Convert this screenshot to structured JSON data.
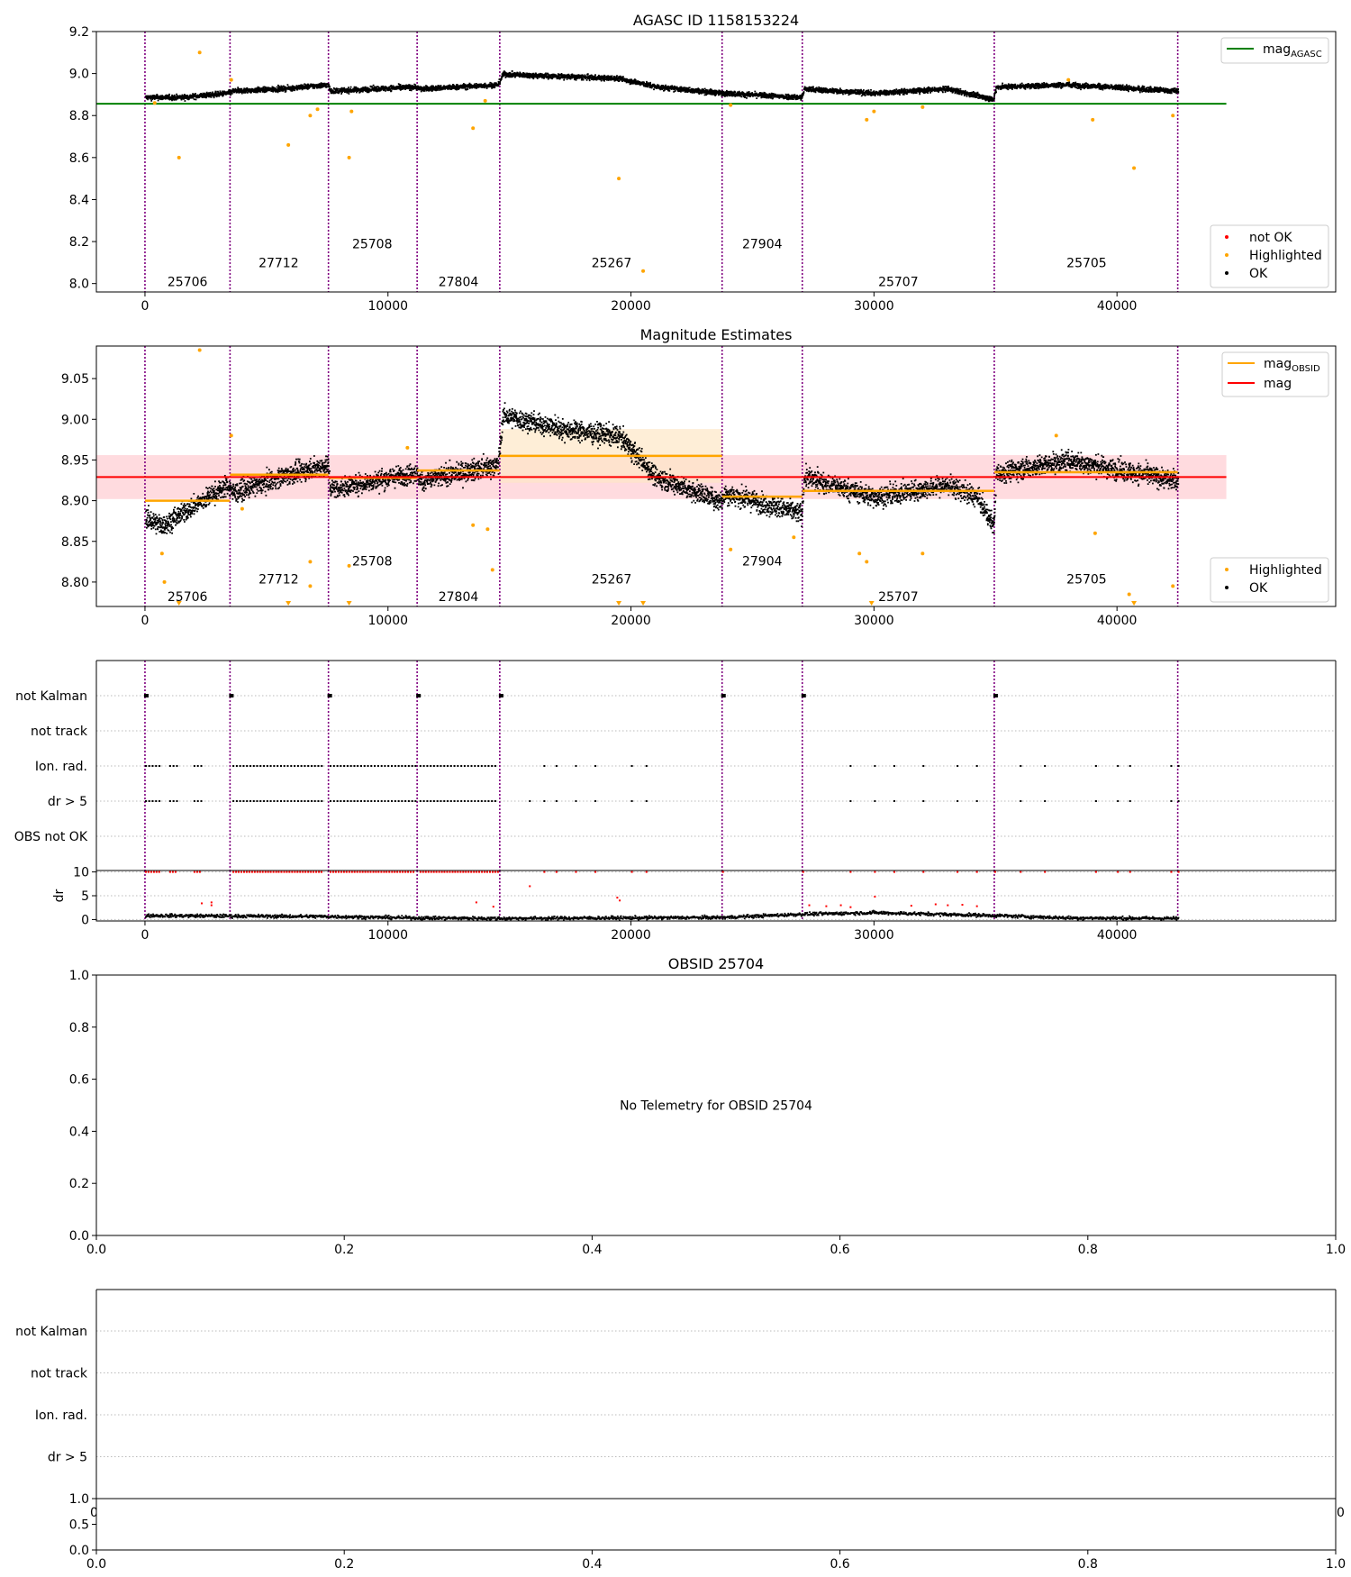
{
  "chart_data": [
    {
      "id": "agasc",
      "type": "scatter",
      "title": "AGASC ID 1158153224",
      "xlim": [
        -2000,
        49000
      ],
      "ylim": [
        7.96,
        9.2
      ],
      "yticks": [
        8.0,
        8.2,
        8.4,
        8.6,
        8.8,
        9.0,
        9.2
      ],
      "ytick_labels": [
        "8.0",
        "8.2",
        "8.4",
        "8.6",
        "8.8",
        "9.0",
        "9.2"
      ],
      "xticks": [
        0,
        10000,
        20000,
        30000,
        40000
      ],
      "xtick_labels": [
        "0",
        "10000",
        "20000",
        "30000",
        "40000"
      ],
      "obsid_boundaries": [
        0,
        3500,
        7550,
        11200,
        14600,
        23750,
        27050,
        34950,
        42500
      ],
      "obsid_labels": [
        {
          "text": "25706",
          "x": 1750,
          "y": 8.01
        },
        {
          "text": "27712",
          "x": 5500,
          "y": 8.1
        },
        {
          "text": "25708",
          "x": 9350,
          "y": 8.19
        },
        {
          "text": "27804",
          "x": 12900,
          "y": 8.01
        },
        {
          "text": "25267",
          "x": 19200,
          "y": 8.1
        },
        {
          "text": "27904",
          "x": 25400,
          "y": 8.19
        },
        {
          "text": "25707",
          "x": 31000,
          "y": 8.01
        },
        {
          "text": "25705",
          "x": 38750,
          "y": 8.1
        }
      ],
      "trend": [
        {
          "x": 0,
          "y": 8.89
        },
        {
          "x": 1500,
          "y": 8.89
        },
        {
          "x": 3400,
          "y": 8.91
        },
        {
          "x": 3600,
          "y": 8.92
        },
        {
          "x": 5500,
          "y": 8.93
        },
        {
          "x": 7500,
          "y": 8.95
        },
        {
          "x": 7600,
          "y": 8.92
        },
        {
          "x": 11100,
          "y": 8.94
        },
        {
          "x": 11300,
          "y": 8.93
        },
        {
          "x": 14500,
          "y": 8.95
        },
        {
          "x": 14700,
          "y": 9.0
        },
        {
          "x": 17000,
          "y": 8.99
        },
        {
          "x": 19500,
          "y": 8.98
        },
        {
          "x": 21000,
          "y": 8.94
        },
        {
          "x": 23700,
          "y": 8.91
        },
        {
          "x": 23800,
          "y": 8.91
        },
        {
          "x": 27000,
          "y": 8.89
        },
        {
          "x": 27100,
          "y": 8.93
        },
        {
          "x": 30000,
          "y": 8.91
        },
        {
          "x": 33000,
          "y": 8.93
        },
        {
          "x": 34900,
          "y": 8.88
        },
        {
          "x": 35000,
          "y": 8.94
        },
        {
          "x": 38000,
          "y": 8.95
        },
        {
          "x": 42500,
          "y": 8.92
        }
      ],
      "noise": 0.012,
      "highlighted_points": [
        {
          "x": 2250,
          "y": 9.1
        },
        {
          "x": 1400,
          "y": 8.6
        },
        {
          "x": 5900,
          "y": 8.66
        },
        {
          "x": 8400,
          "y": 8.6
        },
        {
          "x": 13500,
          "y": 8.74
        },
        {
          "x": 19500,
          "y": 8.5
        },
        {
          "x": 20500,
          "y": 8.06
        },
        {
          "x": 39000,
          "y": 8.78
        },
        {
          "x": 40700,
          "y": 8.55
        },
        {
          "x": 29700,
          "y": 8.78
        },
        {
          "x": 6800,
          "y": 8.8
        },
        {
          "x": 30000,
          "y": 8.82
        },
        {
          "x": 24100,
          "y": 8.85
        },
        {
          "x": 8500,
          "y": 8.82
        },
        {
          "x": 42300,
          "y": 8.8
        },
        {
          "x": 400,
          "y": 8.86
        },
        {
          "x": 7100,
          "y": 8.83
        },
        {
          "x": 14000,
          "y": 8.87
        },
        {
          "x": 38000,
          "y": 8.97
        },
        {
          "x": 3550,
          "y": 8.97
        },
        {
          "x": 32000,
          "y": 8.84
        }
      ],
      "reference_lines": [
        {
          "name": "mag_AGASC",
          "name_main": "mag",
          "name_sub": "AGASC",
          "y": 8.856,
          "color": "#008000",
          "x_range": [
            -2000,
            44500
          ]
        }
      ],
      "legend_lines": {
        "placement": "top-right",
        "items": [
          {
            "label": "mag",
            "sub": "AGASC",
            "color": "#008000"
          }
        ]
      },
      "legend_points": {
        "placement": "bottom-right",
        "items": [
          {
            "label": "not OK",
            "color": "#ff0000"
          },
          {
            "label": "Highlighted",
            "color": "#ffa500"
          },
          {
            "label": "OK",
            "color": "#000000"
          }
        ]
      },
      "grid": false
    },
    {
      "id": "magest",
      "type": "scatter",
      "title": "Magnitude Estimates",
      "xlim": [
        -2000,
        49000
      ],
      "ylim": [
        8.77,
        9.09
      ],
      "yticks": [
        8.8,
        8.85,
        8.9,
        8.95,
        9.0,
        9.05
      ],
      "ytick_labels": [
        "8.80",
        "8.85",
        "8.90",
        "8.95",
        "9.00",
        "9.05"
      ],
      "xticks": [
        0,
        10000,
        20000,
        30000,
        40000
      ],
      "xtick_labels": [
        "0",
        "10000",
        "20000",
        "30000",
        "40000"
      ],
      "obsid_boundaries": [
        0,
        3500,
        7550,
        11200,
        14600,
        23750,
        27050,
        34950,
        42500
      ],
      "obsid_labels": [
        {
          "text": "25706",
          "x": 1750,
          "y": 8.782
        },
        {
          "text": "27712",
          "x": 5500,
          "y": 8.804
        },
        {
          "text": "25708",
          "x": 9350,
          "y": 8.826
        },
        {
          "text": "27804",
          "x": 12900,
          "y": 8.782
        },
        {
          "text": "25267",
          "x": 19200,
          "y": 8.804
        },
        {
          "text": "27904",
          "x": 25400,
          "y": 8.826
        },
        {
          "text": "25707",
          "x": 31000,
          "y": 8.782
        },
        {
          "text": "25705",
          "x": 38750,
          "y": 8.804
        }
      ],
      "trend": [
        {
          "x": 0,
          "y": 8.88
        },
        {
          "x": 700,
          "y": 8.87
        },
        {
          "x": 2000,
          "y": 8.895
        },
        {
          "x": 3400,
          "y": 8.92
        },
        {
          "x": 3600,
          "y": 8.91
        },
        {
          "x": 5500,
          "y": 8.93
        },
        {
          "x": 7500,
          "y": 8.945
        },
        {
          "x": 7600,
          "y": 8.915
        },
        {
          "x": 11100,
          "y": 8.935
        },
        {
          "x": 11300,
          "y": 8.925
        },
        {
          "x": 14500,
          "y": 8.945
        },
        {
          "x": 14700,
          "y": 9.005
        },
        {
          "x": 17000,
          "y": 8.99
        },
        {
          "x": 19500,
          "y": 8.98
        },
        {
          "x": 21000,
          "y": 8.93
        },
        {
          "x": 23700,
          "y": 8.9
        },
        {
          "x": 23800,
          "y": 8.91
        },
        {
          "x": 27000,
          "y": 8.885
        },
        {
          "x": 27100,
          "y": 8.93
        },
        {
          "x": 30000,
          "y": 8.905
        },
        {
          "x": 33000,
          "y": 8.92
        },
        {
          "x": 34200,
          "y": 8.905
        },
        {
          "x": 34900,
          "y": 8.87
        },
        {
          "x": 35000,
          "y": 8.935
        },
        {
          "x": 38000,
          "y": 8.95
        },
        {
          "x": 42500,
          "y": 8.925
        }
      ],
      "noise": 0.012,
      "highlighted_points": [
        {
          "x": 2250,
          "y": 9.085
        },
        {
          "x": 3550,
          "y": 8.98
        },
        {
          "x": 700,
          "y": 8.835
        },
        {
          "x": 800,
          "y": 8.8
        },
        {
          "x": 6800,
          "y": 8.825
        },
        {
          "x": 6800,
          "y": 8.795
        },
        {
          "x": 8400,
          "y": 8.82
        },
        {
          "x": 13500,
          "y": 8.87
        },
        {
          "x": 14100,
          "y": 8.865
        },
        {
          "x": 14300,
          "y": 8.815
        },
        {
          "x": 29400,
          "y": 8.835
        },
        {
          "x": 29700,
          "y": 8.825
        },
        {
          "x": 32000,
          "y": 8.835
        },
        {
          "x": 24100,
          "y": 8.84
        },
        {
          "x": 39100,
          "y": 8.86
        },
        {
          "x": 40500,
          "y": 8.785
        },
        {
          "x": 42300,
          "y": 8.795
        },
        {
          "x": 10800,
          "y": 8.965
        },
        {
          "x": 37500,
          "y": 8.98
        },
        {
          "x": 4000,
          "y": 8.89
        },
        {
          "x": 26700,
          "y": 8.855
        }
      ],
      "low_markers": [
        {
          "x": 1400
        },
        {
          "x": 5900
        },
        {
          "x": 8400
        },
        {
          "x": 19500
        },
        {
          "x": 20500
        },
        {
          "x": 29900
        },
        {
          "x": 40700
        }
      ],
      "band": {
        "y0": 8.902,
        "y1": 8.956,
        "x_range": [
          -2000,
          44500
        ],
        "color": "#ffb0b8"
      },
      "obsid_band": {
        "x0": 14600,
        "x1": 23750,
        "y0": 8.922,
        "y1": 8.988,
        "color": "#fde7c6"
      },
      "obsid_mag": [
        {
          "x0": 0,
          "x1": 3500,
          "y": 8.9
        },
        {
          "x0": 3500,
          "x1": 7550,
          "y": 8.932
        },
        {
          "x0": 7550,
          "x1": 11200,
          "y": 8.928
        },
        {
          "x0": 11200,
          "x1": 14600,
          "y": 8.937
        },
        {
          "x0": 14600,
          "x1": 23750,
          "y": 8.955
        },
        {
          "x0": 23750,
          "x1": 27050,
          "y": 8.905
        },
        {
          "x0": 27050,
          "x1": 34950,
          "y": 8.912
        },
        {
          "x0": 34950,
          "x1": 42500,
          "y": 8.935
        }
      ],
      "reference_lines": [
        {
          "name": "mag",
          "y": 8.929,
          "color": "#ff0000",
          "x_range": [
            -2000,
            44500
          ]
        }
      ],
      "legend_lines": {
        "placement": "top-right",
        "items": [
          {
            "label": "mag",
            "sub": "OBSID",
            "color": "#ffa500"
          },
          {
            "label": "mag",
            "sub": "",
            "color": "#ff0000"
          }
        ]
      },
      "legend_points": {
        "placement": "bottom-right",
        "items": [
          {
            "label": "Highlighted",
            "color": "#ffa500"
          },
          {
            "label": "OK",
            "color": "#000000"
          }
        ]
      },
      "grid": false
    },
    {
      "id": "flags",
      "type": "scatter",
      "title": "",
      "xlim": [
        -2000,
        49000
      ],
      "categories": [
        "not Kalman",
        "not track",
        "Ion. rad.",
        "dr > 5",
        "OBS not OK"
      ],
      "xticks": [
        0,
        10000,
        20000,
        30000,
        40000
      ],
      "xtick_labels": [
        "0",
        "10000",
        "20000",
        "30000",
        "40000"
      ],
      "obsid_boundaries": [
        0,
        3500,
        7550,
        11200,
        14600,
        23750,
        27050,
        34950,
        42500
      ],
      "flag_points": {
        "not Kalman": [
          0,
          3500,
          7550,
          11200,
          14600,
          23750,
          27050,
          34950
        ],
        "Ion. rad.": {
          "dense_ranges": [
            [
              0,
              600
            ],
            [
              1000,
              1300
            ],
            [
              2000,
              2300
            ],
            [
              3600,
              7300
            ],
            [
              7600,
              11100
            ],
            [
              11300,
              14500
            ]
          ],
          "sparse": [
            16400,
            16900,
            17700,
            18500,
            20000,
            20600,
            29000,
            30000,
            30800,
            32000,
            33400,
            34200,
            36000,
            37000,
            39100,
            40000,
            40500,
            42200,
            42500
          ]
        },
        "dr > 5": {
          "dense_ranges": [
            [
              0,
              600
            ],
            [
              1000,
              1300
            ],
            [
              2000,
              2300
            ],
            [
              3600,
              7300
            ],
            [
              7600,
              11100
            ],
            [
              11300,
              14500
            ]
          ],
          "sparse": [
            15800,
            16400,
            16900,
            17700,
            18500,
            20000,
            20600,
            29000,
            30000,
            30800,
            32000,
            33400,
            34200,
            36000,
            37000,
            39100,
            40000,
            40500,
            42200,
            42500
          ]
        }
      },
      "grid": true
    },
    {
      "id": "dr",
      "type": "scatter",
      "title": "",
      "ylabel": "dr",
      "xlim": [
        -2000,
        49000
      ],
      "ylim": [
        -0.3,
        10.3
      ],
      "yticks": [
        0,
        5,
        10
      ],
      "ytick_labels": [
        "0",
        "5",
        "10"
      ],
      "xticks": [
        0,
        10000,
        20000,
        30000,
        40000
      ],
      "xtick_labels": [
        "0",
        "10000",
        "20000",
        "30000",
        "40000"
      ],
      "obsid_boundaries": [
        0,
        3500,
        7550,
        11200,
        14600,
        23750,
        27050,
        34950,
        42500
      ],
      "baseline": [
        {
          "x": 0,
          "y": 1.0
        },
        {
          "x": 3500,
          "y": 0.9
        },
        {
          "x": 7550,
          "y": 0.8
        },
        {
          "x": 11200,
          "y": 0.5
        },
        {
          "x": 14600,
          "y": 0.4
        },
        {
          "x": 23750,
          "y": 0.6
        },
        {
          "x": 27050,
          "y": 1.3
        },
        {
          "x": 30000,
          "y": 1.6
        },
        {
          "x": 34950,
          "y": 1.0
        },
        {
          "x": 38000,
          "y": 0.5
        },
        {
          "x": 42500,
          "y": 0.4
        }
      ],
      "red_capped": {
        "dense_ranges": [
          [
            0,
            600
          ],
          [
            1000,
            1300
          ],
          [
            2000,
            2300
          ],
          [
            3600,
            7300
          ],
          [
            7600,
            11100
          ],
          [
            11300,
            14500
          ]
        ],
        "sparse": [
          16400,
          16900,
          17700,
          18500,
          20000,
          20600,
          23750,
          27050,
          29000,
          30000,
          30800,
          32000,
          33400,
          34200,
          34950,
          36000,
          37000,
          39100,
          40000,
          40500,
          42200,
          42500
        ]
      },
      "red_points": [
        {
          "x": 15800,
          "y": 7
        },
        {
          "x": 13600,
          "y": 3.6
        },
        {
          "x": 19500,
          "y": 4.0
        },
        {
          "x": 2300,
          "y": 3.4
        },
        {
          "x": 2700,
          "y": 3.6
        },
        {
          "x": 2700,
          "y": 3.0
        },
        {
          "x": 19400,
          "y": 4.6
        },
        {
          "x": 30000,
          "y": 4.8
        },
        {
          "x": 27300,
          "y": 3.0
        },
        {
          "x": 28000,
          "y": 2.8
        },
        {
          "x": 28600,
          "y": 3.0
        },
        {
          "x": 29000,
          "y": 2.6
        },
        {
          "x": 31500,
          "y": 2.9
        },
        {
          "x": 32500,
          "y": 3.2
        },
        {
          "x": 33000,
          "y": 3.0
        },
        {
          "x": 33600,
          "y": 3.1
        },
        {
          "x": 34200,
          "y": 2.8
        },
        {
          "x": 14300,
          "y": 2.7
        }
      ],
      "grid": true
    },
    {
      "id": "obsid",
      "type": "scatter",
      "title": "OBSID 25704",
      "annotation": "No Telemetry for OBSID 25704",
      "xlim": [
        0,
        1
      ],
      "ylim": [
        0,
        1
      ],
      "xticks": [
        0,
        0.2,
        0.4,
        0.6,
        0.8,
        1.0
      ],
      "xtick_labels": [
        "0.0",
        "0.2",
        "0.4",
        "0.6",
        "0.8",
        "1.0"
      ],
      "yticks": [
        0,
        0.2,
        0.4,
        0.6,
        0.8,
        1.0
      ],
      "ytick_labels": [
        "0.0",
        "0.2",
        "0.4",
        "0.6",
        "0.8",
        "1.0"
      ],
      "grid": false
    },
    {
      "id": "flags2",
      "type": "scatter",
      "title": "",
      "categories": [
        "not Kalman",
        "not track",
        "Ion. rad.",
        "dr > 5"
      ],
      "hidden_xtick_labels": [
        "0",
        "0"
      ],
      "grid": true
    },
    {
      "id": "dr2",
      "type": "scatter",
      "title": "",
      "xlim": [
        0,
        1
      ],
      "ylim": [
        0,
        1
      ],
      "yticks": [
        0,
        0.5,
        1.0
      ],
      "ytick_labels": [
        "0.0",
        "0.5",
        "1.0"
      ],
      "xticks": [
        0,
        0.2,
        0.4,
        0.6,
        0.8,
        1.0
      ],
      "xtick_labels": [
        "0.0",
        "0.2",
        "0.4",
        "0.6",
        "0.8",
        "1.0"
      ],
      "grid": false
    }
  ]
}
